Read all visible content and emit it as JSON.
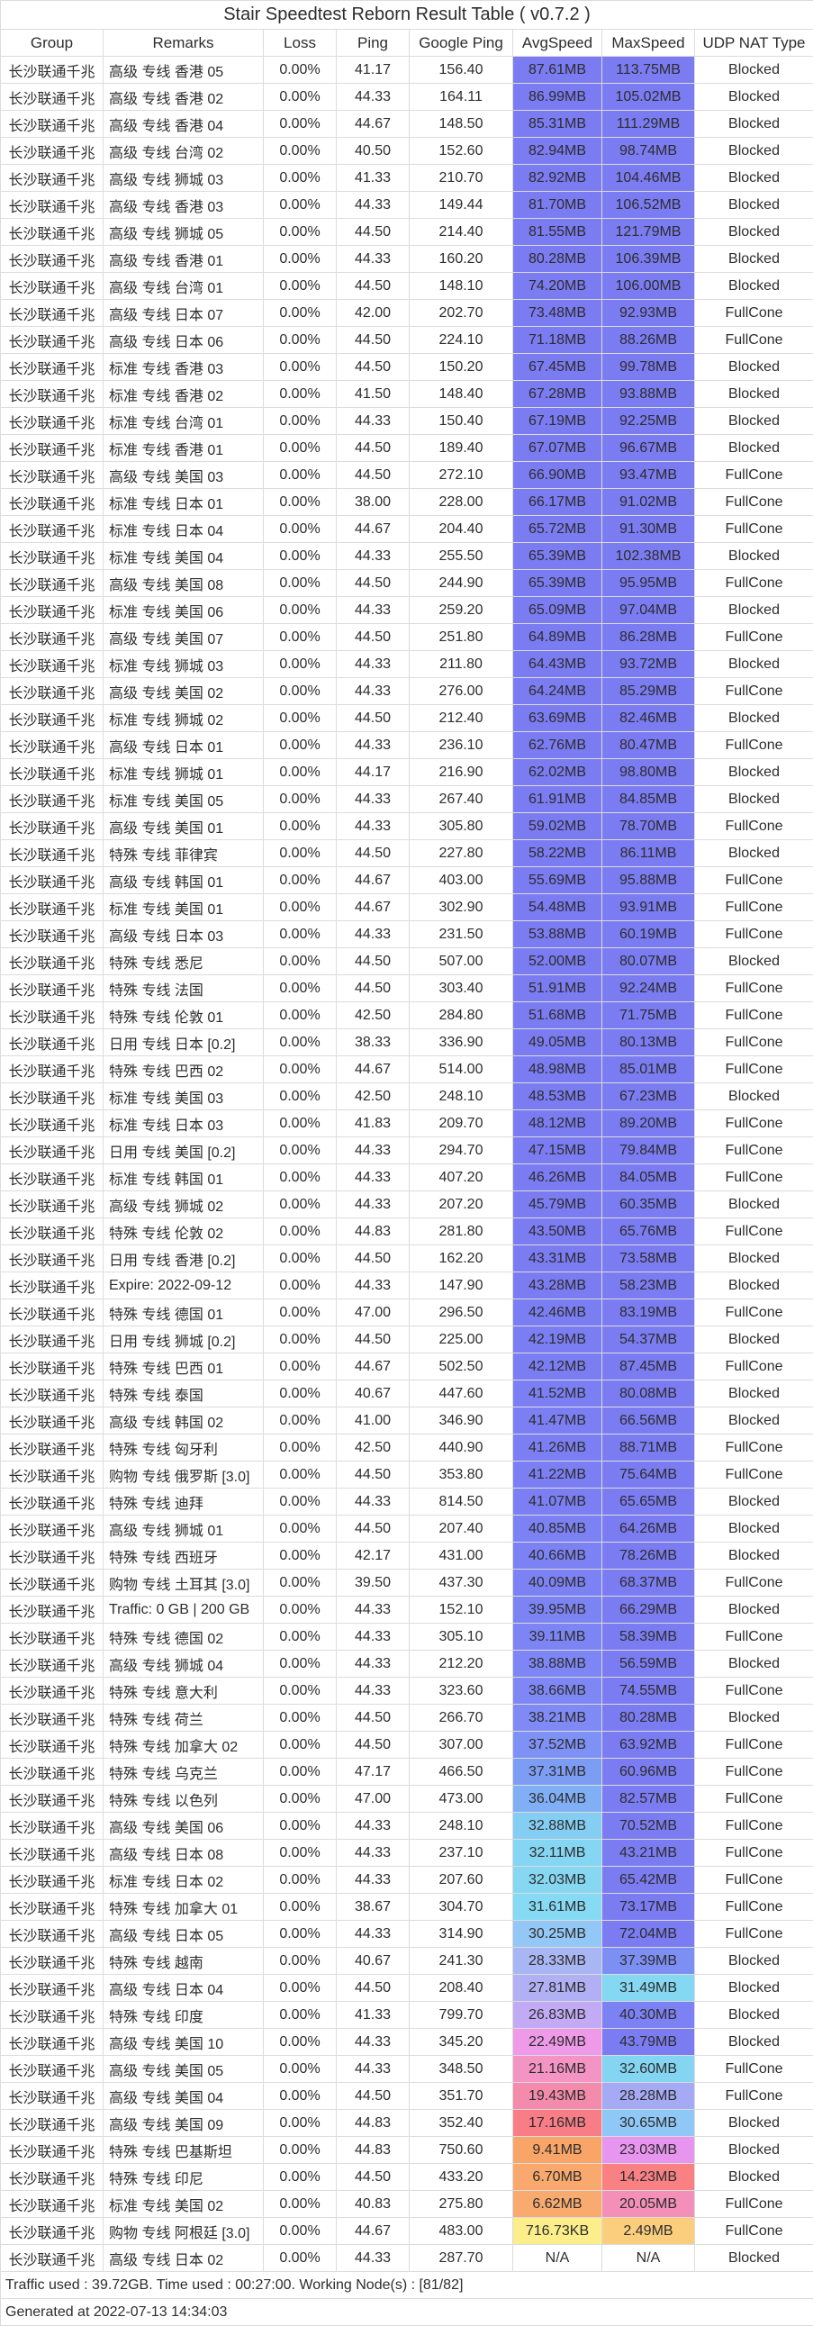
{
  "title": "Stair Speedtest Reborn Result Table ( v0.7.2 )",
  "footer": {
    "summary": "Traffic used : 39.72GB. Time used : 00:27:00. Working Node(s) : [81/82]",
    "generated": "Generated at 2022-07-13 14:34:03"
  },
  "colors": {
    "border": "#dcdcdc",
    "text": "#2d2d2d",
    "top_speed_fill": "#7b7bf2"
  },
  "chart_data": {
    "type": "table",
    "title": "Stair Speedtest Reborn Result Table ( v0.7.2 )",
    "columns": [
      "Group",
      "Remarks",
      "Loss",
      "Ping",
      "Google Ping",
      "AvgSpeed",
      "MaxSpeed",
      "UDP NAT Type"
    ],
    "row_fields": [
      "group",
      "remarks",
      "loss",
      "ping",
      "google_ping",
      "avg_speed",
      "max_speed",
      "udp_nat_type",
      "avg_color",
      "max_color"
    ],
    "rows": [
      [
        "长沙联通千兆",
        "高级 专线 香港 05",
        "0.00%",
        "41.17",
        "156.40",
        "87.61MB",
        "113.75MB",
        "Blocked",
        "#7b7bf2",
        "#7b7bf2"
      ],
      [
        "长沙联通千兆",
        "高级 专线 香港 02",
        "0.00%",
        "44.33",
        "164.11",
        "86.99MB",
        "105.02MB",
        "Blocked",
        "#7b7bf2",
        "#7b7bf2"
      ],
      [
        "长沙联通千兆",
        "高级 专线 香港 04",
        "0.00%",
        "44.67",
        "148.50",
        "85.31MB",
        "111.29MB",
        "Blocked",
        "#7b7bf2",
        "#7b7bf2"
      ],
      [
        "长沙联通千兆",
        "高级 专线 台湾 02",
        "0.00%",
        "40.50",
        "152.60",
        "82.94MB",
        "98.74MB",
        "Blocked",
        "#7b7bf2",
        "#7b7bf2"
      ],
      [
        "长沙联通千兆",
        "高级 专线 狮城 03",
        "0.00%",
        "41.33",
        "210.70",
        "82.92MB",
        "104.46MB",
        "Blocked",
        "#7b7bf2",
        "#7b7bf2"
      ],
      [
        "长沙联通千兆",
        "高级 专线 香港 03",
        "0.00%",
        "44.33",
        "149.44",
        "81.70MB",
        "106.52MB",
        "Blocked",
        "#7b7bf2",
        "#7b7bf2"
      ],
      [
        "长沙联通千兆",
        "高级 专线 狮城 05",
        "0.00%",
        "44.50",
        "214.40",
        "81.55MB",
        "121.79MB",
        "Blocked",
        "#7b7bf2",
        "#7b7bf2"
      ],
      [
        "长沙联通千兆",
        "高级 专线 香港 01",
        "0.00%",
        "44.33",
        "160.20",
        "80.28MB",
        "106.39MB",
        "Blocked",
        "#7b7bf2",
        "#7b7bf2"
      ],
      [
        "长沙联通千兆",
        "高级 专线 台湾 01",
        "0.00%",
        "44.50",
        "148.10",
        "74.20MB",
        "106.00MB",
        "Blocked",
        "#7b7bf2",
        "#7b7bf2"
      ],
      [
        "长沙联通千兆",
        "高级 专线 日本 07",
        "0.00%",
        "42.00",
        "202.70",
        "73.48MB",
        "92.93MB",
        "FullCone",
        "#7b7bf2",
        "#7b7bf2"
      ],
      [
        "长沙联通千兆",
        "高级 专线 日本 06",
        "0.00%",
        "44.50",
        "224.10",
        "71.18MB",
        "88.26MB",
        "FullCone",
        "#7b7bf2",
        "#7b7bf2"
      ],
      [
        "长沙联通千兆",
        "标准 专线 香港 03",
        "0.00%",
        "44.50",
        "150.20",
        "67.45MB",
        "99.78MB",
        "Blocked",
        "#7b7bf2",
        "#7b7bf2"
      ],
      [
        "长沙联通千兆",
        "标准 专线 香港 02",
        "0.00%",
        "41.50",
        "148.40",
        "67.28MB",
        "93.88MB",
        "Blocked",
        "#7b7bf2",
        "#7b7bf2"
      ],
      [
        "长沙联通千兆",
        "标准 专线 台湾 01",
        "0.00%",
        "44.33",
        "150.40",
        "67.19MB",
        "92.25MB",
        "Blocked",
        "#7b7bf2",
        "#7b7bf2"
      ],
      [
        "长沙联通千兆",
        "标准 专线 香港 01",
        "0.00%",
        "44.50",
        "189.40",
        "67.07MB",
        "96.67MB",
        "Blocked",
        "#7b7bf2",
        "#7b7bf2"
      ],
      [
        "长沙联通千兆",
        "高级 专线 美国 03",
        "0.00%",
        "44.50",
        "272.10",
        "66.90MB",
        "93.47MB",
        "FullCone",
        "#7b7bf2",
        "#7b7bf2"
      ],
      [
        "长沙联通千兆",
        "标准 专线 日本 01",
        "0.00%",
        "38.00",
        "228.00",
        "66.17MB",
        "91.02MB",
        "FullCone",
        "#7b7bf2",
        "#7b7bf2"
      ],
      [
        "长沙联通千兆",
        "标准 专线 日本 04",
        "0.00%",
        "44.67",
        "204.40",
        "65.72MB",
        "91.30MB",
        "FullCone",
        "#7b7bf2",
        "#7b7bf2"
      ],
      [
        "长沙联通千兆",
        "标准 专线 美国 04",
        "0.00%",
        "44.33",
        "255.50",
        "65.39MB",
        "102.38MB",
        "Blocked",
        "#7b7bf2",
        "#7b7bf2"
      ],
      [
        "长沙联通千兆",
        "高级 专线 美国 08",
        "0.00%",
        "44.50",
        "244.90",
        "65.39MB",
        "95.95MB",
        "FullCone",
        "#7b7bf2",
        "#7b7bf2"
      ],
      [
        "长沙联通千兆",
        "标准 专线 美国 06",
        "0.00%",
        "44.33",
        "259.20",
        "65.09MB",
        "97.04MB",
        "Blocked",
        "#7b7bf2",
        "#7b7bf2"
      ],
      [
        "长沙联通千兆",
        "高级 专线 美国 07",
        "0.00%",
        "44.50",
        "251.80",
        "64.89MB",
        "86.28MB",
        "FullCone",
        "#7b7bf2",
        "#7b7bf2"
      ],
      [
        "长沙联通千兆",
        "标准 专线 狮城 03",
        "0.00%",
        "44.33",
        "211.80",
        "64.43MB",
        "93.72MB",
        "Blocked",
        "#7b7bf2",
        "#7b7bf2"
      ],
      [
        "长沙联通千兆",
        "高级 专线 美国 02",
        "0.00%",
        "44.33",
        "276.00",
        "64.24MB",
        "85.29MB",
        "FullCone",
        "#7b7bf2",
        "#7b7bf2"
      ],
      [
        "长沙联通千兆",
        "标准 专线 狮城 02",
        "0.00%",
        "44.50",
        "212.40",
        "63.69MB",
        "82.46MB",
        "Blocked",
        "#7b7bf2",
        "#7b7bf2"
      ],
      [
        "长沙联通千兆",
        "高级 专线 日本 01",
        "0.00%",
        "44.33",
        "236.10",
        "62.76MB",
        "80.47MB",
        "FullCone",
        "#7b7bf2",
        "#7b7bf2"
      ],
      [
        "长沙联通千兆",
        "标准 专线 狮城 01",
        "0.00%",
        "44.17",
        "216.90",
        "62.02MB",
        "98.80MB",
        "Blocked",
        "#7b7bf2",
        "#7b7bf2"
      ],
      [
        "长沙联通千兆",
        "标准 专线 美国 05",
        "0.00%",
        "44.33",
        "267.40",
        "61.91MB",
        "84.85MB",
        "Blocked",
        "#7b7bf2",
        "#7b7bf2"
      ],
      [
        "长沙联通千兆",
        "高级 专线 美国 01",
        "0.00%",
        "44.33",
        "305.80",
        "59.02MB",
        "78.70MB",
        "FullCone",
        "#7b7bf2",
        "#7b7bf2"
      ],
      [
        "长沙联通千兆",
        "特殊 专线 菲律宾",
        "0.00%",
        "44.50",
        "227.80",
        "58.22MB",
        "86.11MB",
        "Blocked",
        "#7b7bf2",
        "#7b7bf2"
      ],
      [
        "长沙联通千兆",
        "高级 专线 韩国 01",
        "0.00%",
        "44.67",
        "403.00",
        "55.69MB",
        "95.88MB",
        "FullCone",
        "#7b7bf2",
        "#7b7bf2"
      ],
      [
        "长沙联通千兆",
        "标准 专线 美国 01",
        "0.00%",
        "44.67",
        "302.90",
        "54.48MB",
        "93.91MB",
        "FullCone",
        "#7b7bf2",
        "#7b7bf2"
      ],
      [
        "长沙联通千兆",
        "高级 专线 日本 03",
        "0.00%",
        "44.33",
        "231.50",
        "53.88MB",
        "60.19MB",
        "FullCone",
        "#7b7bf2",
        "#7b7bf2"
      ],
      [
        "长沙联通千兆",
        "特殊 专线 悉尼",
        "0.00%",
        "44.50",
        "507.00",
        "52.00MB",
        "80.07MB",
        "Blocked",
        "#7b7bf2",
        "#7b7bf2"
      ],
      [
        "长沙联通千兆",
        "特殊 专线 法国",
        "0.00%",
        "44.50",
        "303.40",
        "51.91MB",
        "92.24MB",
        "FullCone",
        "#7b7bf2",
        "#7b7bf2"
      ],
      [
        "长沙联通千兆",
        "特殊 专线 伦敦 01",
        "0.00%",
        "42.50",
        "284.80",
        "51.68MB",
        "71.75MB",
        "FullCone",
        "#7b7bf2",
        "#7b7bf2"
      ],
      [
        "长沙联通千兆",
        "日用 专线 日本 [0.2]",
        "0.00%",
        "38.33",
        "336.90",
        "49.05MB",
        "80.13MB",
        "FullCone",
        "#7b7bf2",
        "#7b7bf2"
      ],
      [
        "长沙联通千兆",
        "特殊 专线 巴西 02",
        "0.00%",
        "44.67",
        "514.00",
        "48.98MB",
        "85.01MB",
        "FullCone",
        "#7b7bf2",
        "#7b7bf2"
      ],
      [
        "长沙联通千兆",
        "标准 专线 美国 03",
        "0.00%",
        "42.50",
        "248.10",
        "48.53MB",
        "67.23MB",
        "Blocked",
        "#7b7bf2",
        "#7b7bf2"
      ],
      [
        "长沙联通千兆",
        "标准 专线 日本 03",
        "0.00%",
        "41.83",
        "209.70",
        "48.12MB",
        "89.20MB",
        "FullCone",
        "#7b7bf2",
        "#7b7bf2"
      ],
      [
        "长沙联通千兆",
        "日用 专线 美国 [0.2]",
        "0.00%",
        "44.33",
        "294.70",
        "47.15MB",
        "79.84MB",
        "FullCone",
        "#7b7bf2",
        "#7b7bf2"
      ],
      [
        "长沙联通千兆",
        "标准 专线 韩国 01",
        "0.00%",
        "44.33",
        "407.20",
        "46.26MB",
        "84.05MB",
        "FullCone",
        "#7b7bf2",
        "#7b7bf2"
      ],
      [
        "长沙联通千兆",
        "高级 专线 狮城 02",
        "0.00%",
        "44.33",
        "207.20",
        "45.79MB",
        "60.35MB",
        "Blocked",
        "#7b7bf2",
        "#7b7bf2"
      ],
      [
        "长沙联通千兆",
        "特殊 专线 伦敦 02",
        "0.00%",
        "44.83",
        "281.80",
        "43.50MB",
        "65.76MB",
        "FullCone",
        "#7b7bf2",
        "#7b7bf2"
      ],
      [
        "长沙联通千兆",
        "日用 专线 香港 [0.2]",
        "0.00%",
        "44.50",
        "162.20",
        "43.31MB",
        "73.58MB",
        "Blocked",
        "#7b7bf2",
        "#7b7bf2"
      ],
      [
        "长沙联通千兆",
        "Expire: 2022-09-12",
        "0.00%",
        "44.33",
        "147.90",
        "43.28MB",
        "58.23MB",
        "Blocked",
        "#7b7bf2",
        "#7b7bf2"
      ],
      [
        "长沙联通千兆",
        "特殊 专线 德国 01",
        "0.00%",
        "47.00",
        "296.50",
        "42.46MB",
        "83.19MB",
        "FullCone",
        "#7b7df3",
        "#7b7bf2"
      ],
      [
        "长沙联通千兆",
        "日用 专线 狮城 [0.2]",
        "0.00%",
        "44.50",
        "225.00",
        "42.19MB",
        "54.37MB",
        "Blocked",
        "#7b7df3",
        "#7b7bf2"
      ],
      [
        "长沙联通千兆",
        "特殊 专线 巴西 01",
        "0.00%",
        "44.67",
        "502.50",
        "42.12MB",
        "87.45MB",
        "FullCone",
        "#7b7df3",
        "#7b7bf2"
      ],
      [
        "长沙联通千兆",
        "特殊 专线 泰国",
        "0.00%",
        "40.67",
        "447.60",
        "41.52MB",
        "80.08MB",
        "Blocked",
        "#7c7ff3",
        "#7b7bf2"
      ],
      [
        "长沙联通千兆",
        "高级 专线 韩国 02",
        "0.00%",
        "41.00",
        "346.90",
        "41.47MB",
        "66.56MB",
        "Blocked",
        "#7c7ff3",
        "#7b7bf2"
      ],
      [
        "长沙联通千兆",
        "特殊 专线 匈牙利",
        "0.00%",
        "42.50",
        "440.90",
        "41.26MB",
        "88.71MB",
        "FullCone",
        "#7c7ff3",
        "#7b7bf2"
      ],
      [
        "长沙联通千兆",
        "购物 专线 俄罗斯 [3.0]",
        "0.00%",
        "44.50",
        "353.80",
        "41.22MB",
        "75.64MB",
        "FullCone",
        "#7c7ff3",
        "#7b7bf2"
      ],
      [
        "长沙联通千兆",
        "特殊 专线 迪拜",
        "0.00%",
        "44.33",
        "814.50",
        "41.07MB",
        "65.65MB",
        "Blocked",
        "#7c7ff3",
        "#7b7bf2"
      ],
      [
        "长沙联通千兆",
        "高级 专线 狮城 01",
        "0.00%",
        "44.50",
        "207.40",
        "40.85MB",
        "64.26MB",
        "Blocked",
        "#7c81f3",
        "#7b7bf2"
      ],
      [
        "长沙联通千兆",
        "特殊 专线 西班牙",
        "0.00%",
        "42.17",
        "431.00",
        "40.66MB",
        "78.26MB",
        "Blocked",
        "#7c81f3",
        "#7b7bf2"
      ],
      [
        "长沙联通千兆",
        "购物 专线 土耳其 [3.0]",
        "0.00%",
        "39.50",
        "437.30",
        "40.09MB",
        "68.37MB",
        "FullCone",
        "#7c81f3",
        "#7b7bf2"
      ],
      [
        "长沙联通千兆",
        "Traffic: 0 GB | 200 GB",
        "0.00%",
        "44.33",
        "152.10",
        "39.95MB",
        "66.29MB",
        "Blocked",
        "#7c83f3",
        "#7b7bf2"
      ],
      [
        "长沙联通千兆",
        "特殊 专线 德国 02",
        "0.00%",
        "44.33",
        "305.10",
        "39.11MB",
        "58.39MB",
        "FullCone",
        "#7d85f4",
        "#7b7bf2"
      ],
      [
        "长沙联通千兆",
        "高级 专线 狮城 04",
        "0.00%",
        "44.33",
        "212.20",
        "38.88MB",
        "56.59MB",
        "Blocked",
        "#7d86f4",
        "#7b7bf2"
      ],
      [
        "长沙联通千兆",
        "特殊 专线 意大利",
        "0.00%",
        "44.33",
        "323.60",
        "38.66MB",
        "74.55MB",
        "FullCone",
        "#7e87f4",
        "#7b7bf2"
      ],
      [
        "长沙联通千兆",
        "特殊 专线 荷兰",
        "0.00%",
        "44.50",
        "266.70",
        "38.21MB",
        "80.28MB",
        "Blocked",
        "#7f8af4",
        "#7b7bf2"
      ],
      [
        "长沙联通千兆",
        "特殊 专线 加拿大 02",
        "0.00%",
        "44.50",
        "307.00",
        "37.52MB",
        "63.92MB",
        "FullCone",
        "#7e91f5",
        "#7b7bf2"
      ],
      [
        "长沙联通千兆",
        "特殊 专线 乌克兰",
        "0.00%",
        "47.17",
        "466.50",
        "37.31MB",
        "60.96MB",
        "FullCone",
        "#7d9df5",
        "#7b7bf2"
      ],
      [
        "长沙联通千兆",
        "特殊 专线 以色列",
        "0.00%",
        "47.00",
        "473.00",
        "36.04MB",
        "82.57MB",
        "FullCone",
        "#81aff5",
        "#7b7bf2"
      ],
      [
        "长沙联通千兆",
        "高级 专线 美国 06",
        "0.00%",
        "44.33",
        "248.10",
        "32.88MB",
        "70.52MB",
        "FullCone",
        "#84cef3",
        "#7b7bf2"
      ],
      [
        "长沙联通千兆",
        "高级 专线 日本 08",
        "0.00%",
        "44.33",
        "237.10",
        "32.11MB",
        "43.21MB",
        "FullCone",
        "#85d6f2",
        "#7b7bf2"
      ],
      [
        "长沙联通千兆",
        "标准 专线 日本 02",
        "0.00%",
        "44.33",
        "207.60",
        "32.03MB",
        "65.42MB",
        "FullCone",
        "#85d7f2",
        "#7b7bf2"
      ],
      [
        "长沙联通千兆",
        "特殊 专线 加拿大 01",
        "0.00%",
        "38.67",
        "304.70",
        "31.61MB",
        "73.17MB",
        "FullCone",
        "#86daf3",
        "#7b7bf2"
      ],
      [
        "长沙联通千兆",
        "高级 专线 日本 05",
        "0.00%",
        "44.33",
        "314.90",
        "30.25MB",
        "72.04MB",
        "FullCone",
        "#93c7f6",
        "#7b7bf2"
      ],
      [
        "长沙联通千兆",
        "特殊 专线 越南",
        "0.00%",
        "40.67",
        "241.30",
        "28.33MB",
        "37.39MB",
        "Blocked",
        "#a9b6f4",
        "#7e8ff4"
      ],
      [
        "长沙联通千兆",
        "高级 专线 日本 04",
        "0.00%",
        "44.50",
        "208.40",
        "27.81MB",
        "31.49MB",
        "Blocked",
        "#b1b0f4",
        "#85d8f2"
      ],
      [
        "长沙联通千兆",
        "特殊 专线 印度",
        "0.00%",
        "41.33",
        "799.70",
        "26.83MB",
        "40.30MB",
        "Blocked",
        "#c2abf4",
        "#7c81f3"
      ],
      [
        "长沙联通千兆",
        "高级 专线 美国 10",
        "0.00%",
        "44.33",
        "345.20",
        "22.49MB",
        "43.79MB",
        "Blocked",
        "#ef9ae9",
        "#7b7cf2"
      ],
      [
        "长沙联通千兆",
        "高级 专线 美国 05",
        "0.00%",
        "44.33",
        "348.50",
        "21.16MB",
        "32.60MB",
        "FullCone",
        "#f494c4",
        "#84d5f2"
      ],
      [
        "长沙联通千兆",
        "高级 专线 美国 04",
        "0.00%",
        "44.50",
        "351.70",
        "19.43MB",
        "28.28MB",
        "FullCone",
        "#f48bac",
        "#a4aaf3"
      ],
      [
        "长沙联通千兆",
        "高级 专线 美国 09",
        "0.00%",
        "44.83",
        "352.40",
        "17.16MB",
        "30.65MB",
        "Blocked",
        "#f87d87",
        "#8fc8f6"
      ],
      [
        "长沙联通千兆",
        "特殊 专线 巴基斯坦",
        "0.00%",
        "44.83",
        "750.60",
        "9.41MB",
        "23.03MB",
        "Blocked",
        "#f9a567",
        "#e795ee"
      ],
      [
        "长沙联通千兆",
        "特殊 专线 印尼",
        "0.00%",
        "44.50",
        "433.20",
        "6.70MB",
        "14.23MB",
        "Blocked",
        "#f9a96d",
        "#f98184"
      ],
      [
        "长沙联通千兆",
        "标准 专线 美国 02",
        "0.00%",
        "40.83",
        "275.80",
        "6.62MB",
        "20.05MB",
        "FullCone",
        "#f9aa6e",
        "#f490b8"
      ],
      [
        "长沙联通千兆",
        "购物 专线 阿根廷 [3.0]",
        "0.00%",
        "44.67",
        "483.00",
        "716.73KB",
        "2.49MB",
        "FullCone",
        "#fcee8b",
        "#fbce7e"
      ],
      [
        "长沙联通千兆",
        "高级 专线 日本 02",
        "0.00%",
        "44.33",
        "287.70",
        "N/A",
        "N/A",
        "Blocked",
        "#ffffff",
        "#ffffff"
      ]
    ]
  }
}
